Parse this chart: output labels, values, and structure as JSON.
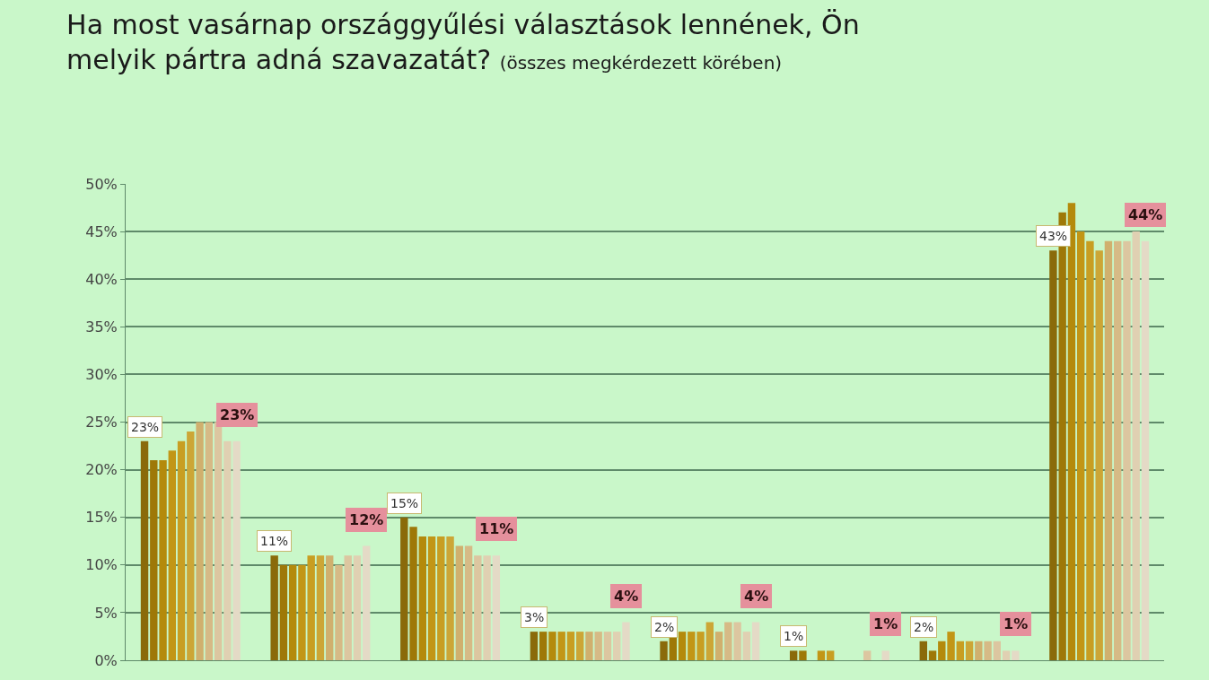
{
  "chart_data": {
    "type": "bar",
    "title": "Ha most vasárnap országgyűlési választások lennének, Ön melyik pártra adná szavazatát?",
    "subtitle": "(összes megkérdezett körében)",
    "categories": [
      null,
      null,
      null,
      null,
      null,
      null,
      null,
      null
    ],
    "series": [
      {
        "color": "#8a6a0a",
        "values": [
          23,
          11,
          15,
          3,
          2,
          1,
          2,
          43
        ],
        "value_labels": [
          "23%",
          "11%",
          "15%",
          "3%",
          "2%",
          "1%",
          "2%",
          "43%"
        ]
      },
      {
        "color": "#9e7808",
        "values": [
          21,
          10,
          14,
          3,
          2.5,
          1,
          1,
          47
        ]
      },
      {
        "color": "#b48a0c",
        "values": [
          21,
          10,
          13,
          3,
          3,
          0,
          2,
          48
        ]
      },
      {
        "color": "#c29616",
        "values": [
          22,
          10,
          13,
          3,
          3,
          1,
          3,
          45
        ]
      },
      {
        "color": "#c89e22",
        "values": [
          23,
          11,
          13,
          3,
          3,
          1,
          2,
          44
        ]
      },
      {
        "color": "#cca636",
        "values": [
          24,
          11,
          13,
          3,
          4,
          0,
          2,
          43
        ]
      },
      {
        "color": "#d0b06e",
        "values": [
          25,
          11,
          12,
          3,
          3,
          0,
          2,
          44
        ]
      },
      {
        "color": "#d6ba86",
        "values": [
          25,
          10,
          12,
          3,
          4,
          0,
          2,
          44
        ]
      },
      {
        "color": "#dcc6a0",
        "values": [
          25,
          11,
          11,
          3,
          4,
          1,
          2,
          44
        ]
      },
      {
        "color": "#e0d0b2",
        "values": [
          23,
          11,
          11,
          3,
          3,
          0,
          1,
          45
        ]
      },
      {
        "color": "#e4dac6",
        "values": [
          23,
          12,
          11,
          4,
          4,
          1,
          1,
          44
        ],
        "value_labels": [
          "23%",
          "12%",
          "11%",
          "4%",
          "4%",
          "1%",
          "1%",
          "44%"
        ]
      }
    ],
    "ylim": [
      0,
      50
    ],
    "yticks": [
      {
        "value": 0,
        "label": "0%"
      },
      {
        "value": 5,
        "label": "5%"
      },
      {
        "value": 10,
        "label": "10%"
      },
      {
        "value": 15,
        "label": "15%"
      },
      {
        "value": 20,
        "label": "20%"
      },
      {
        "value": 25,
        "label": "25%"
      },
      {
        "value": 30,
        "label": "30%"
      },
      {
        "value": 35,
        "label": "35%"
      },
      {
        "value": 40,
        "label": "40%"
      },
      {
        "value": 45,
        "label": "45%"
      },
      {
        "value": 50,
        "label": "50%"
      }
    ],
    "grid": "y",
    "tick_labels": "y"
  }
}
